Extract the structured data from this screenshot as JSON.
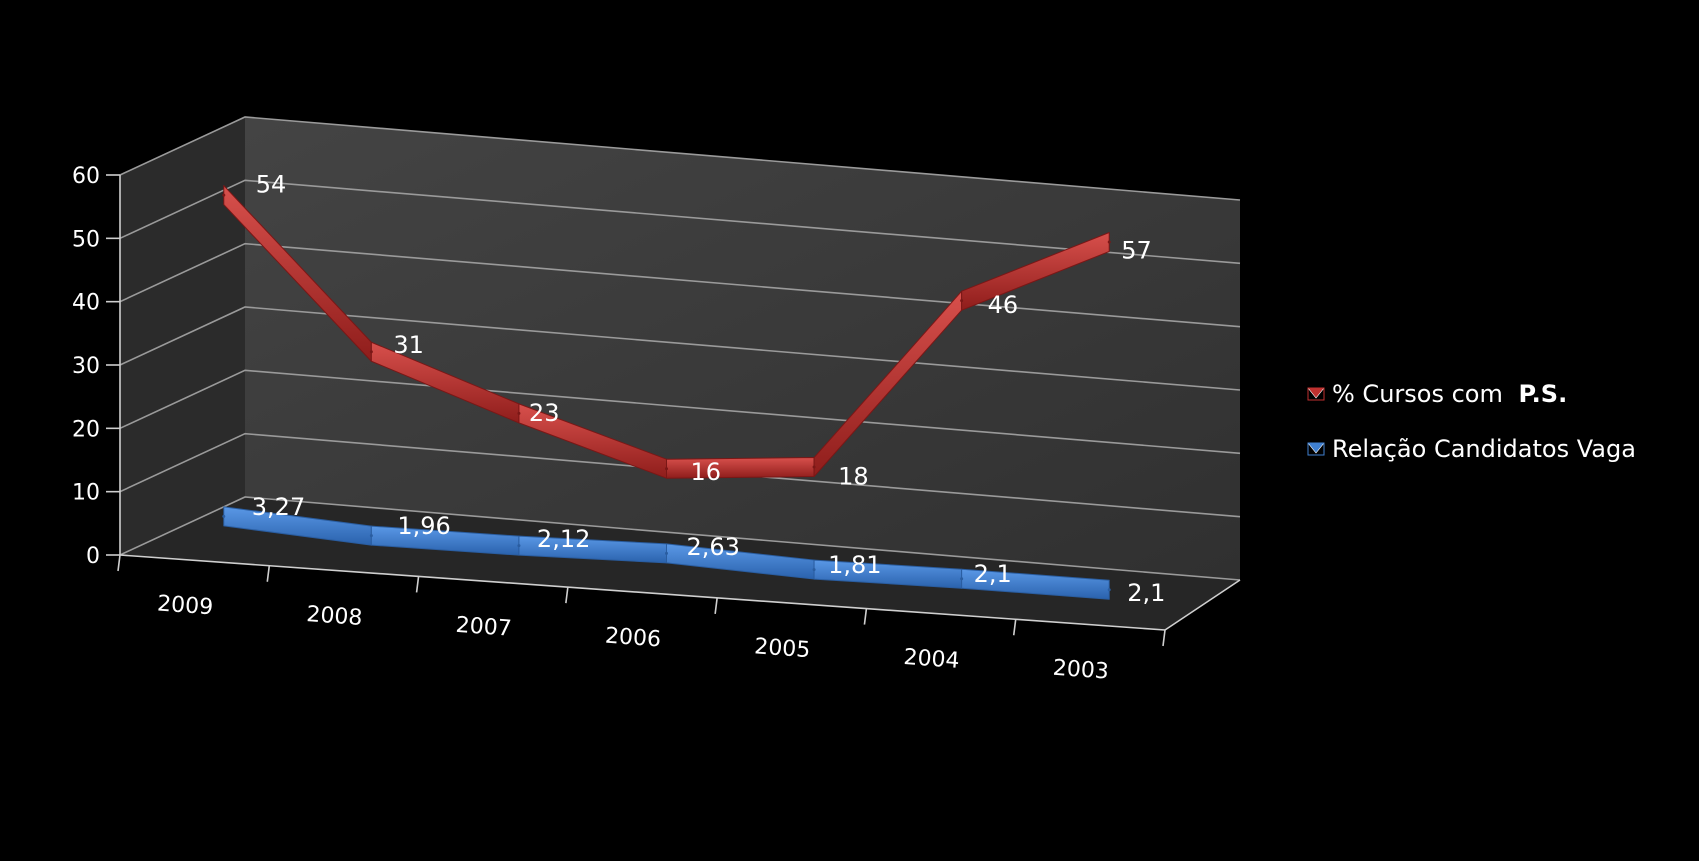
{
  "chart_data": {
    "type": "line",
    "categories": [
      "2009",
      "2008",
      "2007",
      "2006",
      "2005",
      "2004",
      "2003"
    ],
    "series": [
      {
        "name": "% Cursos com  P.S.",
        "name_parts": [
          "% Cursos com ",
          "P.S."
        ],
        "values": [
          54,
          31,
          23,
          16,
          18,
          46,
          57
        ],
        "labels": [
          "54",
          "31",
          "23",
          "16",
          "18",
          "46",
          "57"
        ],
        "color": "#c0312f"
      },
      {
        "name": "Relação Candidatos Vaga",
        "values": [
          3.27,
          1.96,
          2.12,
          2.63,
          1.81,
          2.1,
          2.1
        ],
        "labels": [
          "3,27",
          "1,96",
          "2,12",
          "2,63",
          "1,81",
          "2,1",
          "2,1"
        ],
        "color": "#3f7fcf"
      }
    ],
    "y_ticks": [
      "0",
      "10",
      "20",
      "30",
      "40",
      "50",
      "60"
    ],
    "ylim": [
      0,
      60
    ],
    "grid": true,
    "legend": "right",
    "style": "3d-line",
    "background": "#000000",
    "wall_color": "#3a3a3a"
  }
}
